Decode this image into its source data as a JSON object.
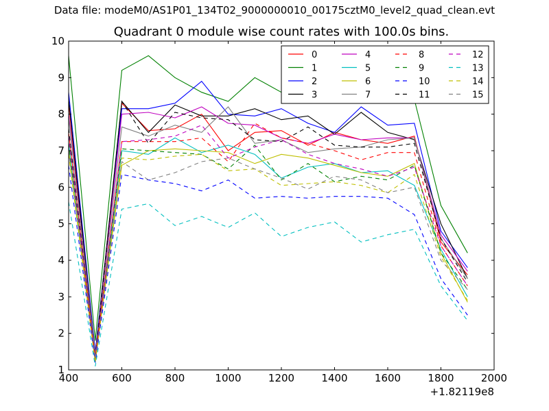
{
  "figure": {
    "suptitle": "Data file: modeM0/AS1P01_134T02_9000000010_00175cztM0_level2_quad_clean.evt"
  },
  "chart_data": {
    "type": "line",
    "title": "Quadrant 0 module wise count rates with 100.0s bins.",
    "xlabel": "",
    "ylabel": "",
    "x_offset_label": "+1.82119e8",
    "xlim": [
      400,
      2000
    ],
    "ylim": [
      1,
      10
    ],
    "xticks": [
      "400",
      "600",
      "800",
      "1000",
      "1200",
      "1400",
      "1600",
      "1800",
      "2000"
    ],
    "yticks": [
      "1",
      "2",
      "3",
      "4",
      "5",
      "6",
      "7",
      "8",
      "9",
      "10"
    ],
    "grid": false,
    "legend_position": "top-right",
    "legend_columns": 4,
    "x": [
      400,
      500,
      600,
      700,
      800,
      900,
      1000,
      1100,
      1200,
      1300,
      1400,
      1500,
      1600,
      1700,
      1800,
      1900
    ],
    "series": [
      {
        "name": "0",
        "color": "#ff0000",
        "dash": "solid",
        "values": [
          8.3,
          1.3,
          8.3,
          7.55,
          7.6,
          8.0,
          7.0,
          7.5,
          7.55,
          7.15,
          7.5,
          7.3,
          7.2,
          7.4,
          4.5,
          3.6
        ]
      },
      {
        "name": "1",
        "color": "#008000",
        "dash": "solid",
        "values": [
          9.6,
          1.8,
          9.2,
          9.6,
          9.0,
          8.6,
          8.35,
          9.0,
          8.6,
          8.75,
          8.85,
          8.4,
          8.6,
          8.4,
          5.5,
          4.2
        ]
      },
      {
        "name": "2",
        "color": "#0000ff",
        "dash": "solid",
        "values": [
          8.6,
          1.5,
          8.15,
          8.15,
          8.3,
          8.9,
          8.0,
          7.95,
          8.15,
          7.75,
          7.5,
          8.2,
          7.7,
          7.75,
          4.8,
          3.8
        ]
      },
      {
        "name": "3",
        "color": "#000000",
        "dash": "solid",
        "values": [
          8.4,
          1.4,
          8.35,
          7.5,
          8.25,
          7.95,
          7.95,
          8.15,
          7.85,
          7.95,
          7.45,
          8.05,
          7.5,
          7.3,
          5.0,
          3.5
        ]
      },
      {
        "name": "4",
        "color": "#bf00bf",
        "dash": "solid",
        "values": [
          8.0,
          1.4,
          8.0,
          8.05,
          7.9,
          8.2,
          7.75,
          7.7,
          7.35,
          7.2,
          7.45,
          7.3,
          7.35,
          7.35,
          4.7,
          3.7
        ]
      },
      {
        "name": "5",
        "color": "#00bfbf",
        "dash": "solid",
        "values": [
          7.2,
          1.2,
          7.0,
          6.9,
          7.35,
          6.95,
          7.15,
          6.9,
          6.25,
          6.55,
          6.65,
          6.4,
          6.45,
          6.05,
          4.3,
          3.0
        ]
      },
      {
        "name": "6",
        "color": "#bfbf00",
        "dash": "solid",
        "values": [
          7.0,
          1.3,
          6.6,
          7.0,
          7.05,
          7.0,
          6.95,
          6.65,
          6.9,
          6.8,
          6.6,
          6.4,
          6.3,
          6.65,
          4.2,
          2.85
        ]
      },
      {
        "name": "7",
        "color": "#808080",
        "dash": "solid",
        "values": [
          7.9,
          1.4,
          7.65,
          7.4,
          7.7,
          7.5,
          8.2,
          7.2,
          7.3,
          6.95,
          7.05,
          7.1,
          7.3,
          7.35,
          4.6,
          3.5
        ]
      },
      {
        "name": "8",
        "color": "#ff0000",
        "dash": "dashed",
        "values": [
          7.5,
          1.3,
          7.25,
          7.25,
          7.25,
          7.35,
          6.7,
          7.75,
          7.35,
          7.2,
          7.0,
          6.75,
          6.95,
          6.95,
          4.4,
          3.3
        ]
      },
      {
        "name": "9",
        "color": "#008000",
        "dash": "dashed",
        "values": [
          7.2,
          1.3,
          7.05,
          7.0,
          6.95,
          6.9,
          6.5,
          7.15,
          6.2,
          6.65,
          6.15,
          6.3,
          6.2,
          6.6,
          4.2,
          3.2
        ]
      },
      {
        "name": "10",
        "color": "#0000ff",
        "dash": "dashed",
        "values": [
          6.6,
          1.2,
          6.35,
          6.2,
          6.1,
          5.9,
          6.2,
          5.7,
          5.75,
          5.7,
          5.75,
          5.75,
          5.7,
          5.25,
          3.5,
          2.5
        ]
      },
      {
        "name": "11",
        "color": "#000000",
        "dash": "dashed",
        "values": [
          7.6,
          1.3,
          8.35,
          7.2,
          8.05,
          7.9,
          7.85,
          7.3,
          7.25,
          7.65,
          7.15,
          7.1,
          7.1,
          7.2,
          4.6,
          3.4
        ]
      },
      {
        "name": "12",
        "color": "#bf00bf",
        "dash": "dashed",
        "values": [
          7.4,
          1.3,
          7.25,
          7.3,
          7.4,
          7.7,
          6.8,
          7.1,
          7.3,
          6.9,
          6.65,
          6.5,
          6.3,
          6.55,
          4.4,
          3.3
        ]
      },
      {
        "name": "13",
        "color": "#00bfbf",
        "dash": "dashed",
        "values": [
          5.6,
          1.1,
          5.4,
          5.55,
          4.95,
          5.2,
          4.9,
          5.3,
          4.65,
          4.9,
          5.05,
          4.5,
          4.7,
          4.85,
          3.3,
          2.35
        ]
      },
      {
        "name": "14",
        "color": "#bfbf00",
        "dash": "dashed",
        "values": [
          6.9,
          1.2,
          6.8,
          6.75,
          6.85,
          6.9,
          6.45,
          6.5,
          6.05,
          6.1,
          6.15,
          6.05,
          5.85,
          6.35,
          4.1,
          2.9
        ]
      },
      {
        "name": "15",
        "color": "#808080",
        "dash": "dashed",
        "values": [
          7.0,
          1.3,
          6.7,
          6.2,
          6.4,
          6.7,
          6.8,
          6.5,
          6.25,
          5.95,
          6.3,
          6.2,
          5.85,
          6.0,
          4.0,
          3.2
        ]
      }
    ]
  }
}
